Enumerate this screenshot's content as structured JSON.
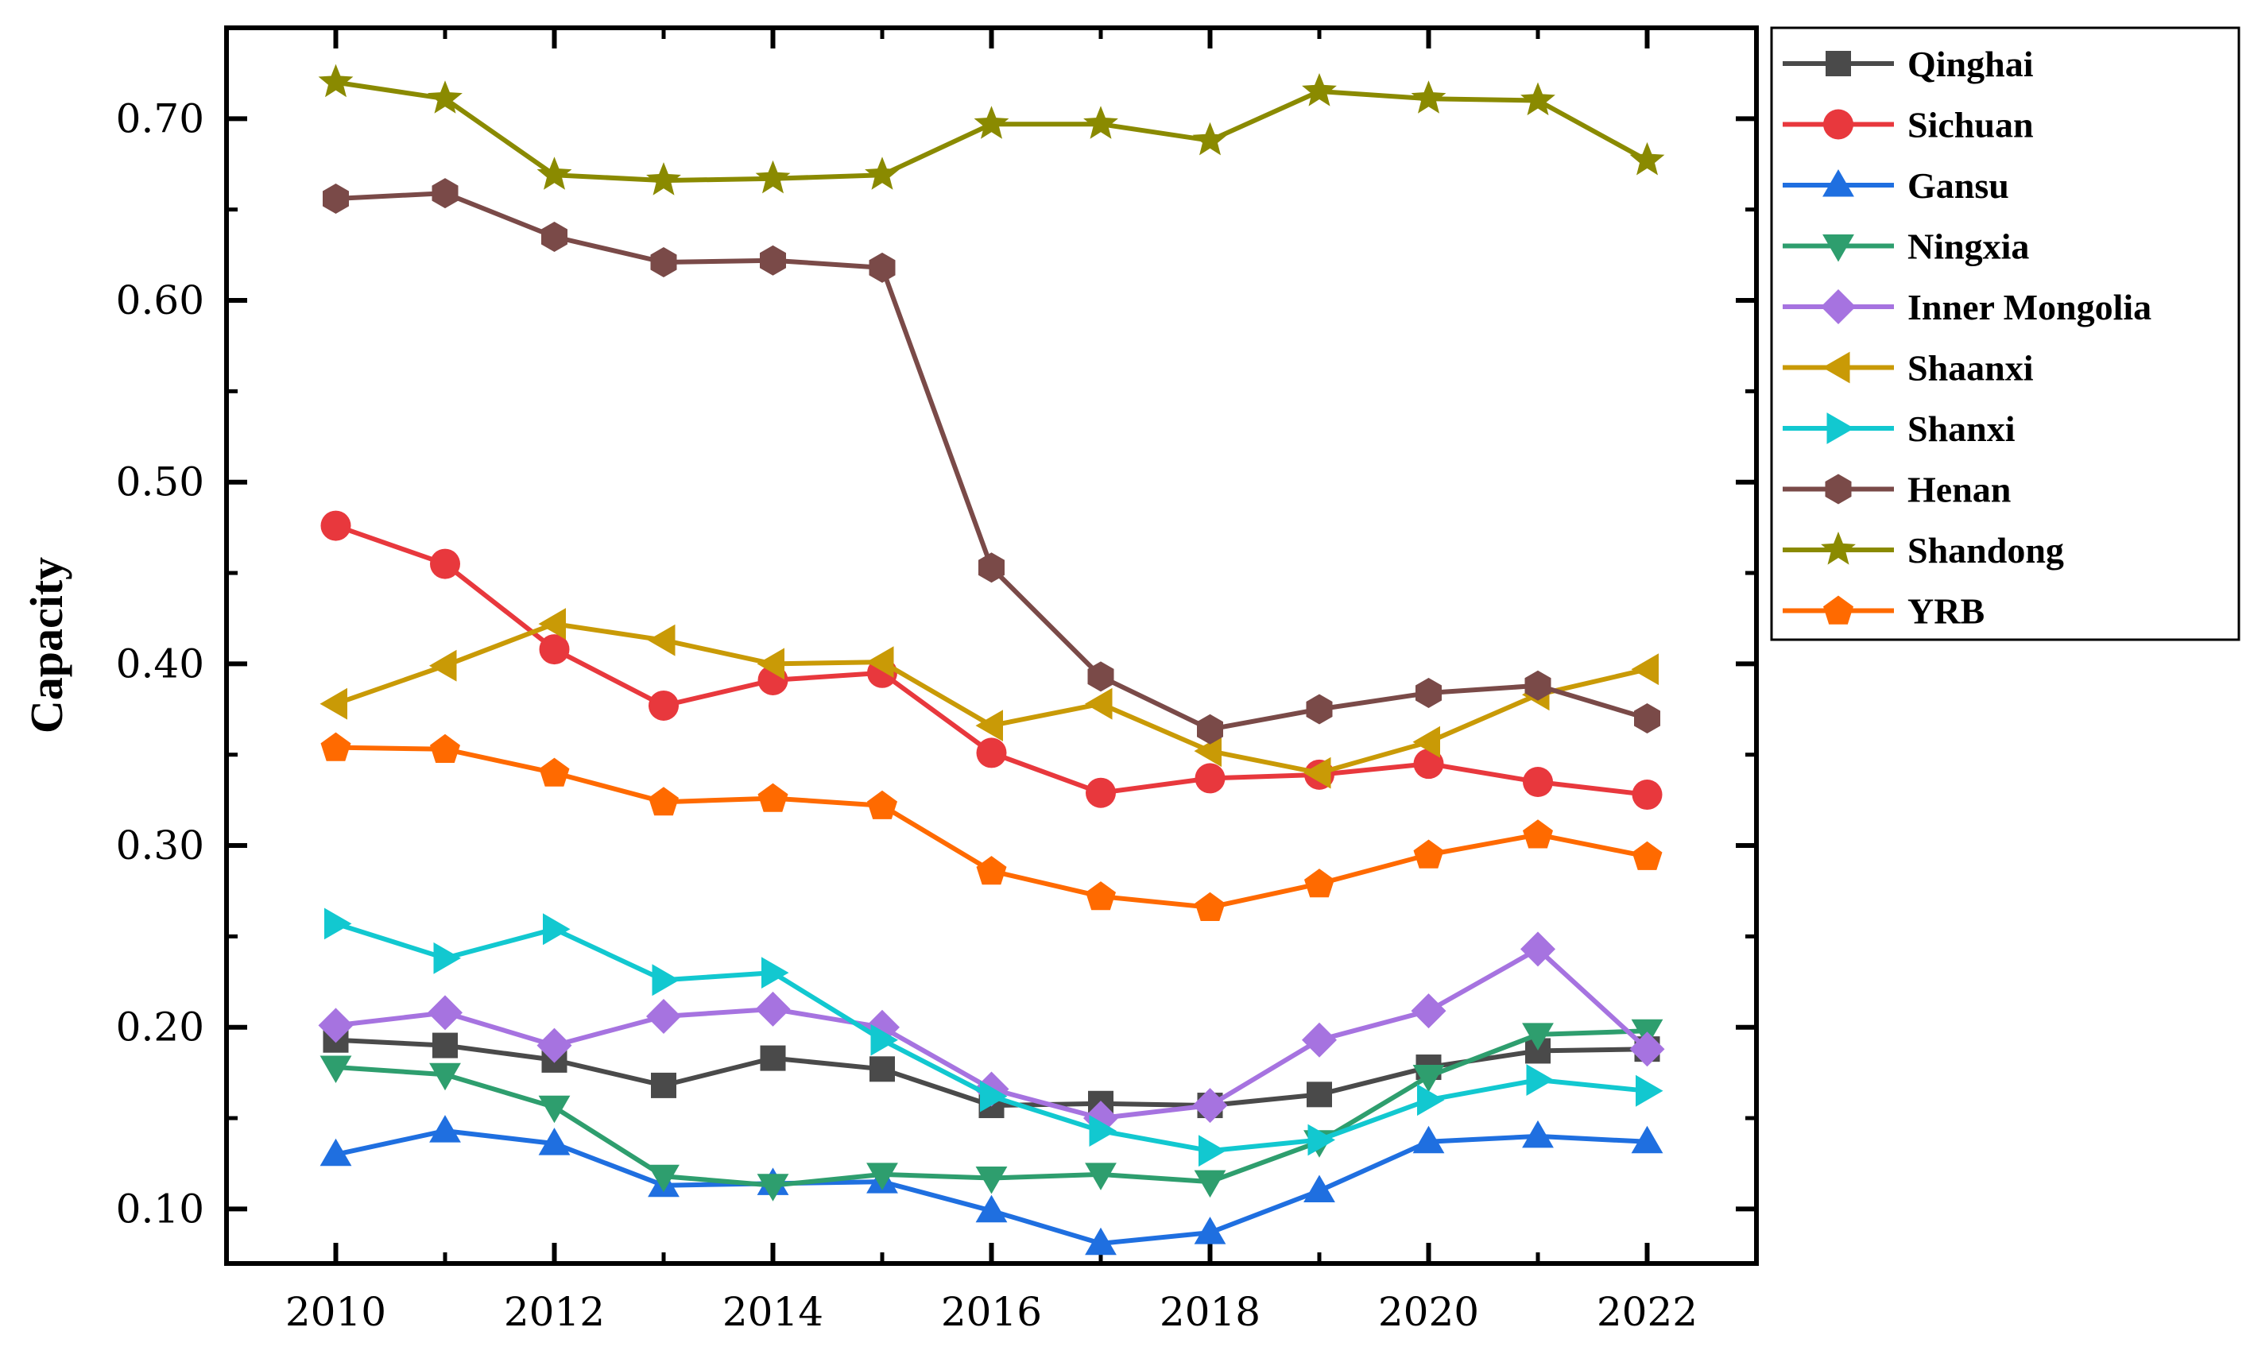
{
  "chart_data": {
    "type": "line",
    "title": "",
    "xlabel": "",
    "ylabel": "Capacity",
    "xlim": [
      2009,
      2023
    ],
    "ylim": [
      0.07,
      0.75
    ],
    "x": [
      2010,
      2011,
      2012,
      2013,
      2014,
      2015,
      2016,
      2017,
      2018,
      2019,
      2020,
      2021,
      2022
    ],
    "xticks": [
      2010,
      2012,
      2014,
      2016,
      2018,
      2020,
      2022
    ],
    "xtick_labels": [
      "2010",
      "2012",
      "2014",
      "2016",
      "2018",
      "2020",
      "2022"
    ],
    "yticks": [
      0.1,
      0.2,
      0.3,
      0.4,
      0.5,
      0.6,
      0.7
    ],
    "ytick_labels": [
      "0.10",
      "0.20",
      "0.30",
      "0.40",
      "0.50",
      "0.60",
      "0.70"
    ],
    "grid": false,
    "legend_position": "outside-top-right",
    "series": [
      {
        "name": "Qinghai",
        "color": "#4a4a4a",
        "marker": "square",
        "values": [
          0.193,
          0.19,
          0.182,
          0.168,
          0.183,
          0.177,
          0.157,
          0.158,
          0.157,
          0.163,
          0.178,
          0.187,
          0.188
        ]
      },
      {
        "name": "Sichuan",
        "color": "#e8383d",
        "marker": "circle",
        "values": [
          0.476,
          0.455,
          0.408,
          0.377,
          0.391,
          0.395,
          0.351,
          0.329,
          0.337,
          0.339,
          0.345,
          0.335,
          0.328
        ]
      },
      {
        "name": "Gansu",
        "color": "#1f6fe0",
        "marker": "triangle-up",
        "values": [
          0.13,
          0.143,
          0.136,
          0.113,
          0.114,
          0.115,
          0.099,
          0.081,
          0.087,
          0.11,
          0.137,
          0.14,
          0.137
        ]
      },
      {
        "name": "Ningxia",
        "color": "#2e9e6e",
        "marker": "triangle-down",
        "values": [
          0.178,
          0.174,
          0.156,
          0.118,
          0.113,
          0.119,
          0.117,
          0.119,
          0.115,
          0.137,
          0.173,
          0.196,
          0.198
        ]
      },
      {
        "name": "Inner Mongolia",
        "color": "#a673e0",
        "marker": "diamond",
        "values": [
          0.201,
          0.208,
          0.19,
          0.206,
          0.21,
          0.2,
          0.166,
          0.15,
          0.157,
          0.193,
          0.209,
          0.243,
          0.188
        ]
      },
      {
        "name": "Shaanxi",
        "color": "#c99a06",
        "marker": "triangle-left",
        "values": [
          0.378,
          0.399,
          0.422,
          0.413,
          0.4,
          0.401,
          0.366,
          0.378,
          0.352,
          0.34,
          0.357,
          0.383,
          0.397
        ]
      },
      {
        "name": "Shanxi",
        "color": "#12c8d0",
        "marker": "triangle-right",
        "values": [
          0.257,
          0.238,
          0.254,
          0.226,
          0.23,
          0.193,
          0.162,
          0.143,
          0.132,
          0.138,
          0.16,
          0.171,
          0.165
        ]
      },
      {
        "name": "Henan",
        "color": "#7a4a48",
        "marker": "hexagon",
        "values": [
          0.656,
          0.659,
          0.635,
          0.621,
          0.622,
          0.618,
          0.453,
          0.393,
          0.364,
          0.375,
          0.384,
          0.388,
          0.37
        ]
      },
      {
        "name": "Shandong",
        "color": "#8a8a00",
        "marker": "star",
        "values": [
          0.72,
          0.711,
          0.669,
          0.666,
          0.667,
          0.669,
          0.697,
          0.697,
          0.688,
          0.715,
          0.711,
          0.71,
          0.677
        ]
      },
      {
        "name": "YRB",
        "color": "#ff6a00",
        "marker": "pentagon",
        "values": [
          0.354,
          0.353,
          0.34,
          0.324,
          0.326,
          0.322,
          0.286,
          0.272,
          0.266,
          0.279,
          0.295,
          0.306,
          0.294
        ]
      }
    ]
  }
}
